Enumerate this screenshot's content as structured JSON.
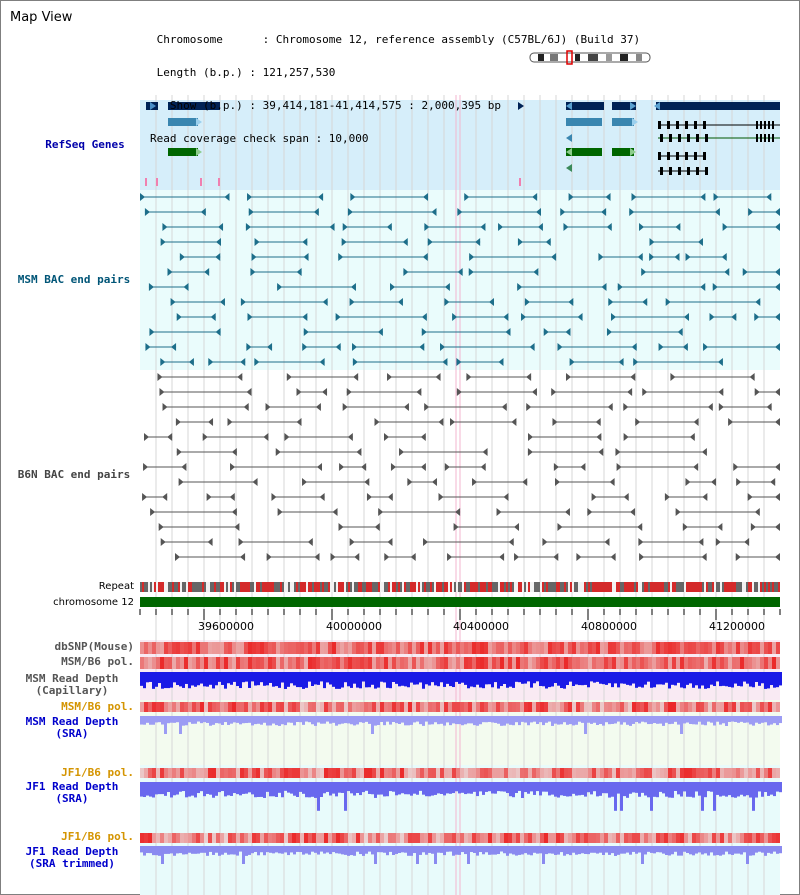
{
  "view_title": "Map View",
  "info": {
    "chromosome": " Chromosome      : Chromosome 12, reference assembly (C57BL/6J) (Build 37)",
    "length": " Length (b.p.) : 121,257,530",
    "show": "   Show (b.p.) : 39,414,181-41,414,575 : 2,000,395 bp",
    "coverage": "Read coverage check span : 10,000"
  },
  "tracks": {
    "refseq": "RefSeq Genes",
    "msm_bac": "MSM BAC end pairs",
    "b6n_bac": "B6N BAC end pairs",
    "repeat": "Repeat",
    "chromosome": "chromosome 12",
    "dbsnp": "dbSNP(Mouse)",
    "msm_b6_pol": "MSM/B6 pol.",
    "msm_depth_cap": "MSM Read Depth\n(Capillary)",
    "msm_b6_pol_sra": "MSM/B6 pol.",
    "msm_depth_sra": "MSM Read Depth\n(SRA)",
    "jf1_b6_pol": "JF1/B6 pol.",
    "jf1_depth_sra": "JF1 Read Depth\n(SRA)",
    "jf1_b6_pol_trim": "JF1/B6 pol.",
    "jf1_depth_trim": "JF1 Read Depth\n(SRA trimmed)"
  },
  "axis": {
    "ticks": [
      "39600000",
      "40000000",
      "40400000",
      "40800000",
      "41200000"
    ]
  },
  "colors": {
    "refseq_label": "#0000aa",
    "msm_label": "#005577",
    "b6n_label": "#444444",
    "gold_label": "#d49400",
    "blue_label": "#0000cc",
    "navy_gene": "#002255",
    "teal_gene": "#3a86b0",
    "green_gene": "#006600",
    "chromosome_bar": "#006600"
  }
}
